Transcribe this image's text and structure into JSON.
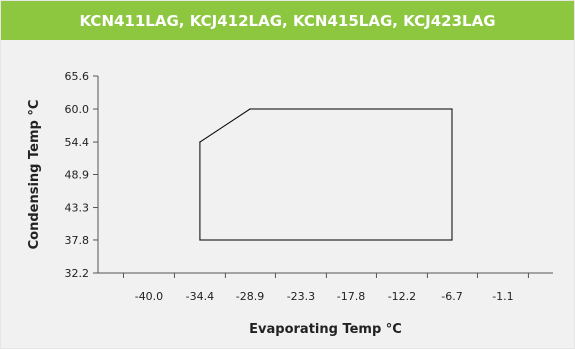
{
  "header": {
    "title": "KCN411LAG, KCJ412LAG, KCN415LAG, KCJ423LAG",
    "background_color": "#8dc63f"
  },
  "chart_data": {
    "type": "line",
    "title": "KCN411LAG, KCJ412LAG, KCN415LAG, KCJ423LAG",
    "xlabel": "Evaporating Temp °C",
    "ylabel": "Condensing Temp °C",
    "x_ticks": [
      "-40.0",
      "-34.4",
      "-28.9",
      "-23.3",
      "-17.8",
      "-12.2",
      "-6.7",
      "-1.1"
    ],
    "y_ticks": [
      "65.6",
      "60.0",
      "54.4",
      "48.9",
      "43.3",
      "37.8",
      "32.2"
    ],
    "xlim": [
      -45.6,
      4.4
    ],
    "ylim": [
      32.2,
      65.6
    ],
    "grid": false,
    "series": [
      {
        "closed": true,
        "x": [
          -34.4,
          -28.9,
          -6.7,
          -6.7,
          -34.4,
          -34.4
        ],
        "y": [
          54.4,
          60.0,
          60.0,
          37.8,
          37.8,
          54.4
        ]
      }
    ],
    "colors": {
      "line": "#000000",
      "axis": "#555555"
    }
  }
}
